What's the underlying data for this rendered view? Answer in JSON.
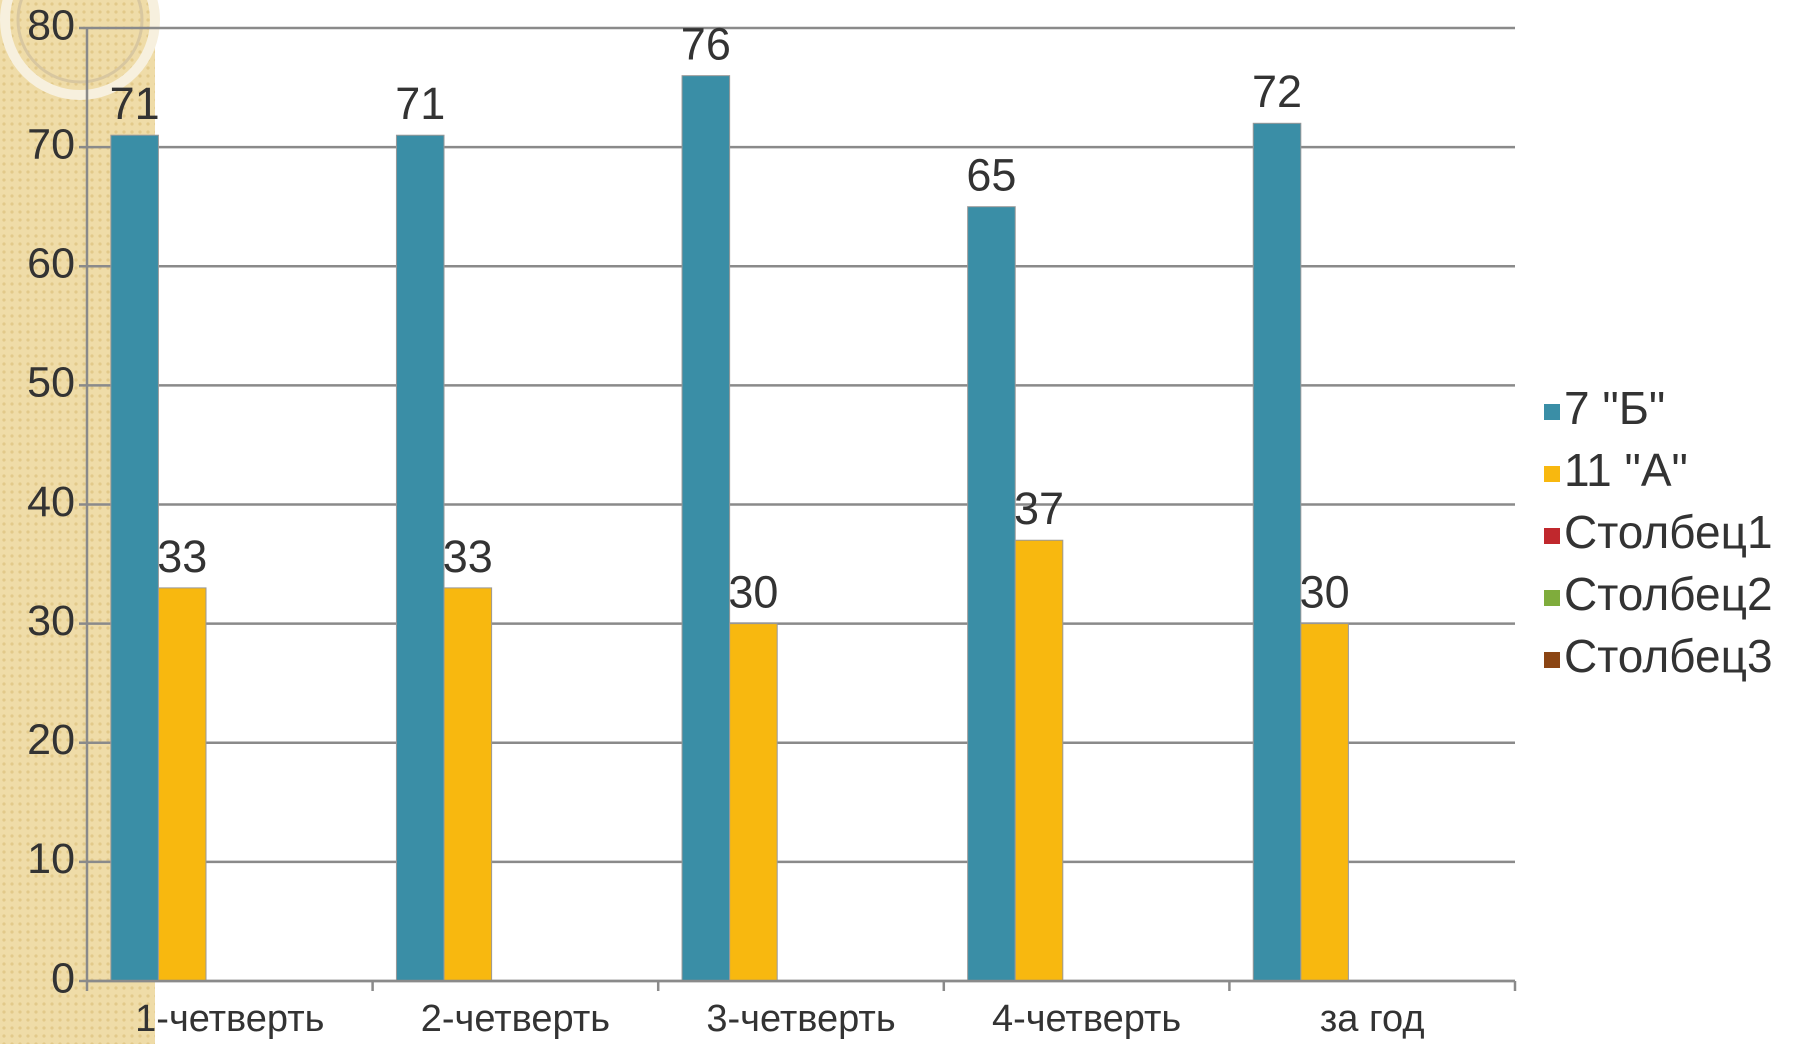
{
  "chart_data": {
    "type": "bar",
    "categories": [
      "1-четверть",
      "2-четверть",
      "3-четверть",
      "4-четверть",
      "за год"
    ],
    "series": [
      {
        "name": "7 \"Б\"",
        "color": "#3a8ea6",
        "values": [
          71,
          71,
          76,
          65,
          72
        ]
      },
      {
        "name": "11 \"А\"",
        "color": "#f8b80f",
        "values": [
          33,
          33,
          30,
          37,
          30
        ]
      },
      {
        "name": "Столбец1",
        "color": "#c0282d",
        "values": [
          null,
          null,
          null,
          null,
          null
        ]
      },
      {
        "name": "Столбец2",
        "color": "#7fac3c",
        "values": [
          null,
          null,
          null,
          null,
          null
        ]
      },
      {
        "name": "Столбец3",
        "color": "#8b4513",
        "values": [
          null,
          null,
          null,
          null,
          null
        ]
      }
    ],
    "ylim": [
      0,
      80
    ],
    "yticks": [
      0,
      10,
      20,
      30,
      40,
      50,
      60,
      70,
      80
    ],
    "grid": true,
    "legend": "right"
  }
}
